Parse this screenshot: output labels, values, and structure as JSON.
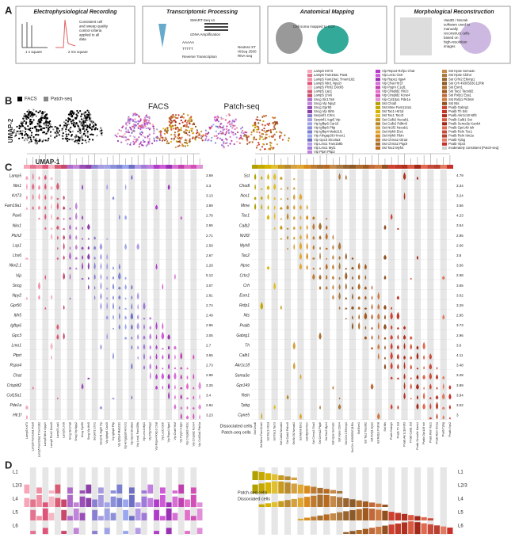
{
  "panels": {
    "a": "A",
    "b": "B",
    "c": "C",
    "d": "D"
  },
  "panel_a": [
    {
      "title": "Electrophysiological Recording",
      "texts": [
        "Consistent cell and sweep quality control criteria applied to all data",
        "1 s square",
        "2 ms square"
      ]
    },
    {
      "title": "Transcriptomic Processing",
      "texts": [
        "SMART-Seq v4",
        "cDNA Amplification",
        "AAAAA",
        "TTTTT",
        "Reverse Transcription",
        "Nextera XT HiSeq 2500 RNA-seq"
      ]
    },
    {
      "title": "Anatomical Mapping",
      "texts": [
        "Cell soma mapped to CCF"
      ]
    },
    {
      "title": "Morphological Reconstruction",
      "texts": [
        "Vaa3D / Mozak software used to manually reconstruct cells based on high-resolution images"
      ]
    }
  ],
  "panel_b": {
    "legend": [
      "FACS",
      "Patch-seq"
    ],
    "plot_titles": [
      "FACS",
      "Patch-seq"
    ],
    "y_label": "UMAP-2",
    "x_label": "UMAP-1"
  },
  "legend": {
    "items": [
      {
        "label": "Lamp5 Krt73",
        "color": "#f7a6b8"
      },
      {
        "label": "Lamp5 Fam19a1 Pax6",
        "color": "#e4738e"
      },
      {
        "label": "Lamp5 Fam19a1 Tmem182",
        "color": "#f08fa4"
      },
      {
        "label": "Lamp5 Ntn1 Npy2r",
        "color": "#e1547a"
      },
      {
        "label": "Lamp5 Plch2 Dock5",
        "color": "#f5b7c4"
      },
      {
        "label": "Lamp5 Lsp1",
        "color": "#d85c73"
      },
      {
        "label": "Lamp5 Lhx6",
        "color": "#c9476a"
      },
      {
        "label": "Sncg Slc17a8",
        "color": "#b06ac9"
      },
      {
        "label": "Sncg Vip Npy2",
        "color": "#c084d8"
      },
      {
        "label": "Sncg Gpr50",
        "color": "#9a4fb8"
      },
      {
        "label": "Sncg Vip Itih5",
        "color": "#8d3fa8"
      },
      {
        "label": "Serpinf1 Clrn1",
        "color": "#8a7fd1"
      },
      {
        "label": "Serpinf1 Aqp5 Vip",
        "color": "#a79be0"
      },
      {
        "label": "Vip Igfbp6 Car10",
        "color": "#a0a4e6"
      },
      {
        "label": "Vip Igfbp6 Pltp",
        "color": "#8c90d9"
      },
      {
        "label": "Vip Igfbp4 Mab21l1",
        "color": "#7a80cf"
      },
      {
        "label": "Vip Arhgap36 Hmcn1",
        "color": "#9aa7ee"
      },
      {
        "label": "Vip Gpc3 Slc18a3",
        "color": "#6d6fc4"
      },
      {
        "label": "Vip Lmo1 Fam159b",
        "color": "#b49be6"
      },
      {
        "label": "Vip Lmo1 Myl1",
        "color": "#a07ad8"
      },
      {
        "label": "Vip Ptprt Pkp2",
        "color": "#c27fe0"
      },
      {
        "label": "Vip Rspo4 Rxfp1 Chat",
        "color": "#b03cc9"
      },
      {
        "label": "Vip Lect1 Oxtr",
        "color": "#cf5ad6"
      },
      {
        "label": "Vip Rspo1 Itga4",
        "color": "#9b2fb5"
      },
      {
        "label": "Vip Chat Htr1f",
        "color": "#d66fd3"
      },
      {
        "label": "Vip Pygm C1ql1",
        "color": "#c040b0"
      },
      {
        "label": "Vip Crispld2 Htr2c",
        "color": "#e271c9"
      },
      {
        "label": "Vip Crispld2 Kcne4",
        "color": "#d24fb8"
      },
      {
        "label": "Vip Col15a1 Pde1a",
        "color": "#e08fd8"
      },
      {
        "label": "Sst Chodl",
        "color": "#b0a000"
      },
      {
        "label": "Sst Mme Fam114a1",
        "color": "#c4a800"
      },
      {
        "label": "Sst Tac1 Htr1d",
        "color": "#d8b400"
      },
      {
        "label": "Sst Tac1 Tacr3",
        "color": "#e0c030"
      },
      {
        "label": "Sst Calb2 Necab1",
        "color": "#c89a20"
      },
      {
        "label": "Sst Calb2 Pdlim5",
        "color": "#b88a30"
      },
      {
        "label": "Sst Nr2f2 Necab1",
        "color": "#d4a040"
      },
      {
        "label": "Sst Myh8 Etv1",
        "color": "#e0a830"
      },
      {
        "label": "Sst Myh8 Fibin",
        "color": "#d88c20"
      },
      {
        "label": "Sst Chrna2 Glra3",
        "color": "#c07a30"
      },
      {
        "label": "Sst Chrna2 Ptgdr",
        "color": "#a87030"
      },
      {
        "label": "Sst Tac2 Myh4",
        "color": "#b86a20"
      },
      {
        "label": "Sst Hpse Sema3c",
        "color": "#c58a4a"
      },
      {
        "label": "Sst Hpse Cbln4",
        "color": "#a8763e"
      },
      {
        "label": "Sst Crhr2 Efemp1",
        "color": "#9a6430"
      },
      {
        "label": "Sst Crh 4930553C11Rik",
        "color": "#8c5a28"
      },
      {
        "label": "Sst Esm1",
        "color": "#b06c2a"
      },
      {
        "label": "Sst Tac2 Tacstd2",
        "color": "#a05a20"
      },
      {
        "label": "Sst Rxfp1 Eya1",
        "color": "#c06a3a"
      },
      {
        "label": "Sst Rxfp1 Prdm8",
        "color": "#d07a40"
      },
      {
        "label": "Sst Nts",
        "color": "#905020"
      },
      {
        "label": "Pvalb Gabrg1",
        "color": "#d04030"
      },
      {
        "label": "Pvalb Th Sst",
        "color": "#c03828"
      },
      {
        "label": "Pvalb Akr1c18 Ntf3",
        "color": "#b03020"
      },
      {
        "label": "Pvalb Calb1 Sst",
        "color": "#d85a40"
      },
      {
        "label": "Pvalb Sema3e Kank4",
        "color": "#a02818"
      },
      {
        "label": "Pvalb Gpr149 Islr",
        "color": "#e06a50"
      },
      {
        "label": "Pvalb Reln Tac1",
        "color": "#c84a3a"
      },
      {
        "label": "Pvalb Reln Itm2a",
        "color": "#b84030"
      },
      {
        "label": "Pvalb Tpbg",
        "color": "#e07a60"
      },
      {
        "label": "Pvalb Vipr2",
        "color": "#c8302a"
      },
      {
        "label": "moderately consistent (Patch-seq)",
        "color": "#d0d0d0"
      }
    ]
  },
  "panel_c": {
    "left": {
      "genes": [
        "Lamp5",
        "Ntn1",
        "Krt73",
        "Fam19a1",
        "Pax6",
        "Nkx1",
        "Plch2",
        "Lsp1",
        "Lhx6",
        "Nkx2.1",
        "Vip",
        "Sncg",
        "Npy2",
        "Gpr50",
        "Itih5",
        "Igfbp6",
        "Gpc3",
        "Lmo1",
        "Ptprt",
        "Rspo4",
        "Chat",
        "Crispld2",
        "Col15a1",
        "Pde1a",
        "Htr1f"
      ],
      "maxima": [
        "3.69",
        "3.3",
        "3.13",
        "3.89",
        "2.78",
        "2.65",
        "2.71",
        "2.59",
        "2.67",
        "2.29",
        "5.12",
        "3.07",
        "2.81",
        "2.74",
        "2.49",
        "2.96",
        "3.05",
        "2.7",
        "3.65",
        "2.73",
        "2.98",
        "3.25",
        "3.4",
        "2.84",
        "3.23"
      ]
    },
    "right": {
      "genes": [
        "Sst",
        "Chodl",
        "Nos1",
        "Mme",
        "Tac1",
        "Calb2",
        "Nr2f2",
        "Myh8",
        "Tac2",
        "Hpse",
        "Crhr2",
        "Crh",
        "Esm1",
        "Rxfp1",
        "Nts",
        "Pvalb",
        "Gabrg1",
        "Th",
        "Calb1",
        "Akr1c18",
        "Sema3e",
        "Gpr149",
        "Reln",
        "Tpbg",
        "Cpne5"
      ],
      "maxima": [
        "4.79",
        "3.34",
        "3.24",
        "3.56",
        "4.23",
        "3.54",
        "2.95",
        "2.66",
        "3.8",
        "3.56",
        "2.68",
        "3.65",
        "3.02",
        "3.29",
        "2.95",
        "3.73",
        "2.96",
        "3.6",
        "4.11",
        "3.48",
        "3.28",
        "3.89",
        "3.94",
        "3.02",
        "3"
      ]
    },
    "notes": [
      "Dissociated cells",
      "Patch-seq cells"
    ]
  },
  "panel_d": {
    "layers": [
      "L1",
      "L2/3",
      "L4",
      "L5",
      "L6"
    ],
    "notes": [
      "Patch-seq cells",
      "Dissociated cells"
    ]
  }
}
